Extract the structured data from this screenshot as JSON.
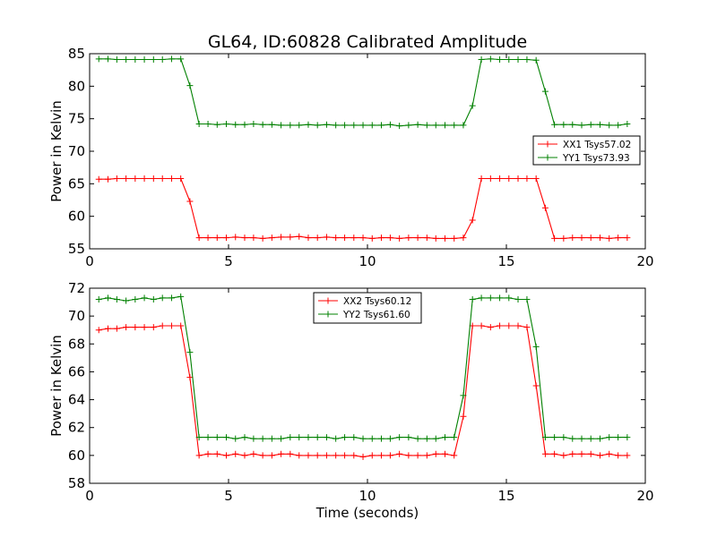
{
  "figure_title": "GL64, ID:60828 Calibrated Amplitude",
  "colors": {
    "red": "#ff0000",
    "green": "#008000"
  },
  "chart_data": [
    {
      "type": "line",
      "title": "GL64, ID:60828 Calibrated Amplitude",
      "xlabel": "",
      "ylabel": "Power in Kelvin",
      "xlim": [
        0,
        20
      ],
      "ylim": [
        55,
        85
      ],
      "xticks": [
        0,
        5,
        10,
        15,
        20
      ],
      "yticks": [
        55,
        60,
        65,
        70,
        75,
        80,
        85
      ],
      "legend_position": "center-right",
      "x": [
        0.33,
        0.66,
        0.98,
        1.31,
        1.64,
        1.97,
        2.3,
        2.62,
        2.95,
        3.28,
        3.61,
        3.94,
        4.26,
        4.59,
        4.92,
        5.25,
        5.58,
        5.9,
        6.23,
        6.56,
        6.89,
        7.22,
        7.54,
        7.87,
        8.2,
        8.53,
        8.86,
        9.18,
        9.51,
        9.84,
        10.17,
        10.5,
        10.82,
        11.15,
        11.48,
        11.81,
        12.14,
        12.46,
        12.79,
        13.12,
        13.45,
        13.78,
        14.1,
        14.43,
        14.76,
        15.09,
        15.42,
        15.74,
        16.07,
        16.4,
        16.73,
        17.06,
        17.38,
        17.71,
        18.04,
        18.37,
        18.7,
        19.02,
        19.35
      ],
      "series": [
        {
          "name": "XX1 Tsys57.02",
          "color": "#ff0000",
          "values": [
            65.7,
            65.7,
            65.8,
            65.8,
            65.8,
            65.8,
            65.8,
            65.8,
            65.8,
            65.8,
            62.3,
            56.7,
            56.7,
            56.7,
            56.7,
            56.8,
            56.7,
            56.7,
            56.6,
            56.7,
            56.8,
            56.8,
            56.9,
            56.7,
            56.7,
            56.8,
            56.7,
            56.7,
            56.7,
            56.7,
            56.6,
            56.7,
            56.7,
            56.6,
            56.7,
            56.7,
            56.7,
            56.6,
            56.6,
            56.6,
            56.7,
            59.4,
            65.8,
            65.8,
            65.8,
            65.8,
            65.8,
            65.8,
            65.8,
            61.3,
            56.6,
            56.6,
            56.7,
            56.7,
            56.7,
            56.7,
            56.6,
            56.7,
            56.7
          ]
        },
        {
          "name": "YY1 Tsys73.93",
          "color": "#008000",
          "values": [
            84.2,
            84.2,
            84.1,
            84.1,
            84.1,
            84.1,
            84.1,
            84.1,
            84.2,
            84.2,
            80.1,
            74.2,
            74.2,
            74.1,
            74.2,
            74.1,
            74.1,
            74.2,
            74.1,
            74.1,
            74.0,
            74.0,
            74.0,
            74.1,
            74.0,
            74.1,
            74.0,
            74.0,
            74.0,
            74.0,
            74.0,
            74.0,
            74.1,
            73.9,
            74.0,
            74.1,
            74.0,
            74.0,
            74.0,
            74.0,
            74.0,
            77.0,
            84.1,
            84.2,
            84.1,
            84.1,
            84.1,
            84.1,
            84.0,
            79.2,
            74.1,
            74.1,
            74.1,
            74.0,
            74.1,
            74.1,
            74.0,
            74.0,
            74.2
          ]
        }
      ]
    },
    {
      "type": "line",
      "title": "",
      "xlabel": "Time (seconds)",
      "ylabel": "Power in Kelvin",
      "xlim": [
        0,
        20
      ],
      "ylim": [
        58,
        72
      ],
      "xticks": [
        0,
        5,
        10,
        15,
        20
      ],
      "yticks": [
        58,
        60,
        62,
        64,
        66,
        68,
        70,
        72
      ],
      "legend_position": "top-center",
      "x": [
        0.33,
        0.66,
        0.98,
        1.31,
        1.64,
        1.97,
        2.3,
        2.62,
        2.95,
        3.28,
        3.61,
        3.94,
        4.26,
        4.59,
        4.92,
        5.25,
        5.58,
        5.9,
        6.23,
        6.56,
        6.89,
        7.22,
        7.54,
        7.87,
        8.2,
        8.53,
        8.86,
        9.18,
        9.51,
        9.84,
        10.17,
        10.5,
        10.82,
        11.15,
        11.48,
        11.81,
        12.14,
        12.46,
        12.79,
        13.12,
        13.45,
        13.78,
        14.1,
        14.43,
        14.76,
        15.09,
        15.42,
        15.74,
        16.07,
        16.4,
        16.73,
        17.06,
        17.38,
        17.71,
        18.04,
        18.37,
        18.7,
        19.02,
        19.35
      ],
      "series": [
        {
          "name": "XX2 Tsys60.12",
          "color": "#ff0000",
          "values": [
            69.0,
            69.1,
            69.1,
            69.2,
            69.2,
            69.2,
            69.2,
            69.3,
            69.3,
            69.3,
            65.6,
            60.0,
            60.1,
            60.1,
            60.0,
            60.1,
            60.0,
            60.1,
            60.0,
            60.0,
            60.1,
            60.1,
            60.0,
            60.0,
            60.0,
            60.0,
            60.0,
            60.0,
            60.0,
            59.9,
            60.0,
            60.0,
            60.0,
            60.1,
            60.0,
            60.0,
            60.0,
            60.1,
            60.1,
            60.0,
            62.8,
            69.3,
            69.3,
            69.2,
            69.3,
            69.3,
            69.3,
            69.2,
            65.0,
            60.1,
            60.1,
            60.0,
            60.1,
            60.1,
            60.1,
            60.0,
            60.1,
            60.0,
            60.0
          ]
        },
        {
          "name": "YY2 Tsys61.60",
          "color": "#008000",
          "values": [
            71.2,
            71.3,
            71.2,
            71.1,
            71.2,
            71.3,
            71.2,
            71.3,
            71.3,
            71.4,
            67.4,
            61.3,
            61.3,
            61.3,
            61.3,
            61.2,
            61.3,
            61.2,
            61.2,
            61.2,
            61.2,
            61.3,
            61.3,
            61.3,
            61.3,
            61.3,
            61.2,
            61.3,
            61.3,
            61.2,
            61.2,
            61.2,
            61.2,
            61.3,
            61.3,
            61.2,
            61.2,
            61.2,
            61.3,
            61.3,
            64.3,
            71.2,
            71.3,
            71.3,
            71.3,
            71.3,
            71.2,
            71.2,
            67.8,
            61.3,
            61.3,
            61.3,
            61.2,
            61.2,
            61.2,
            61.2,
            61.3,
            61.3,
            61.3
          ]
        }
      ]
    }
  ]
}
